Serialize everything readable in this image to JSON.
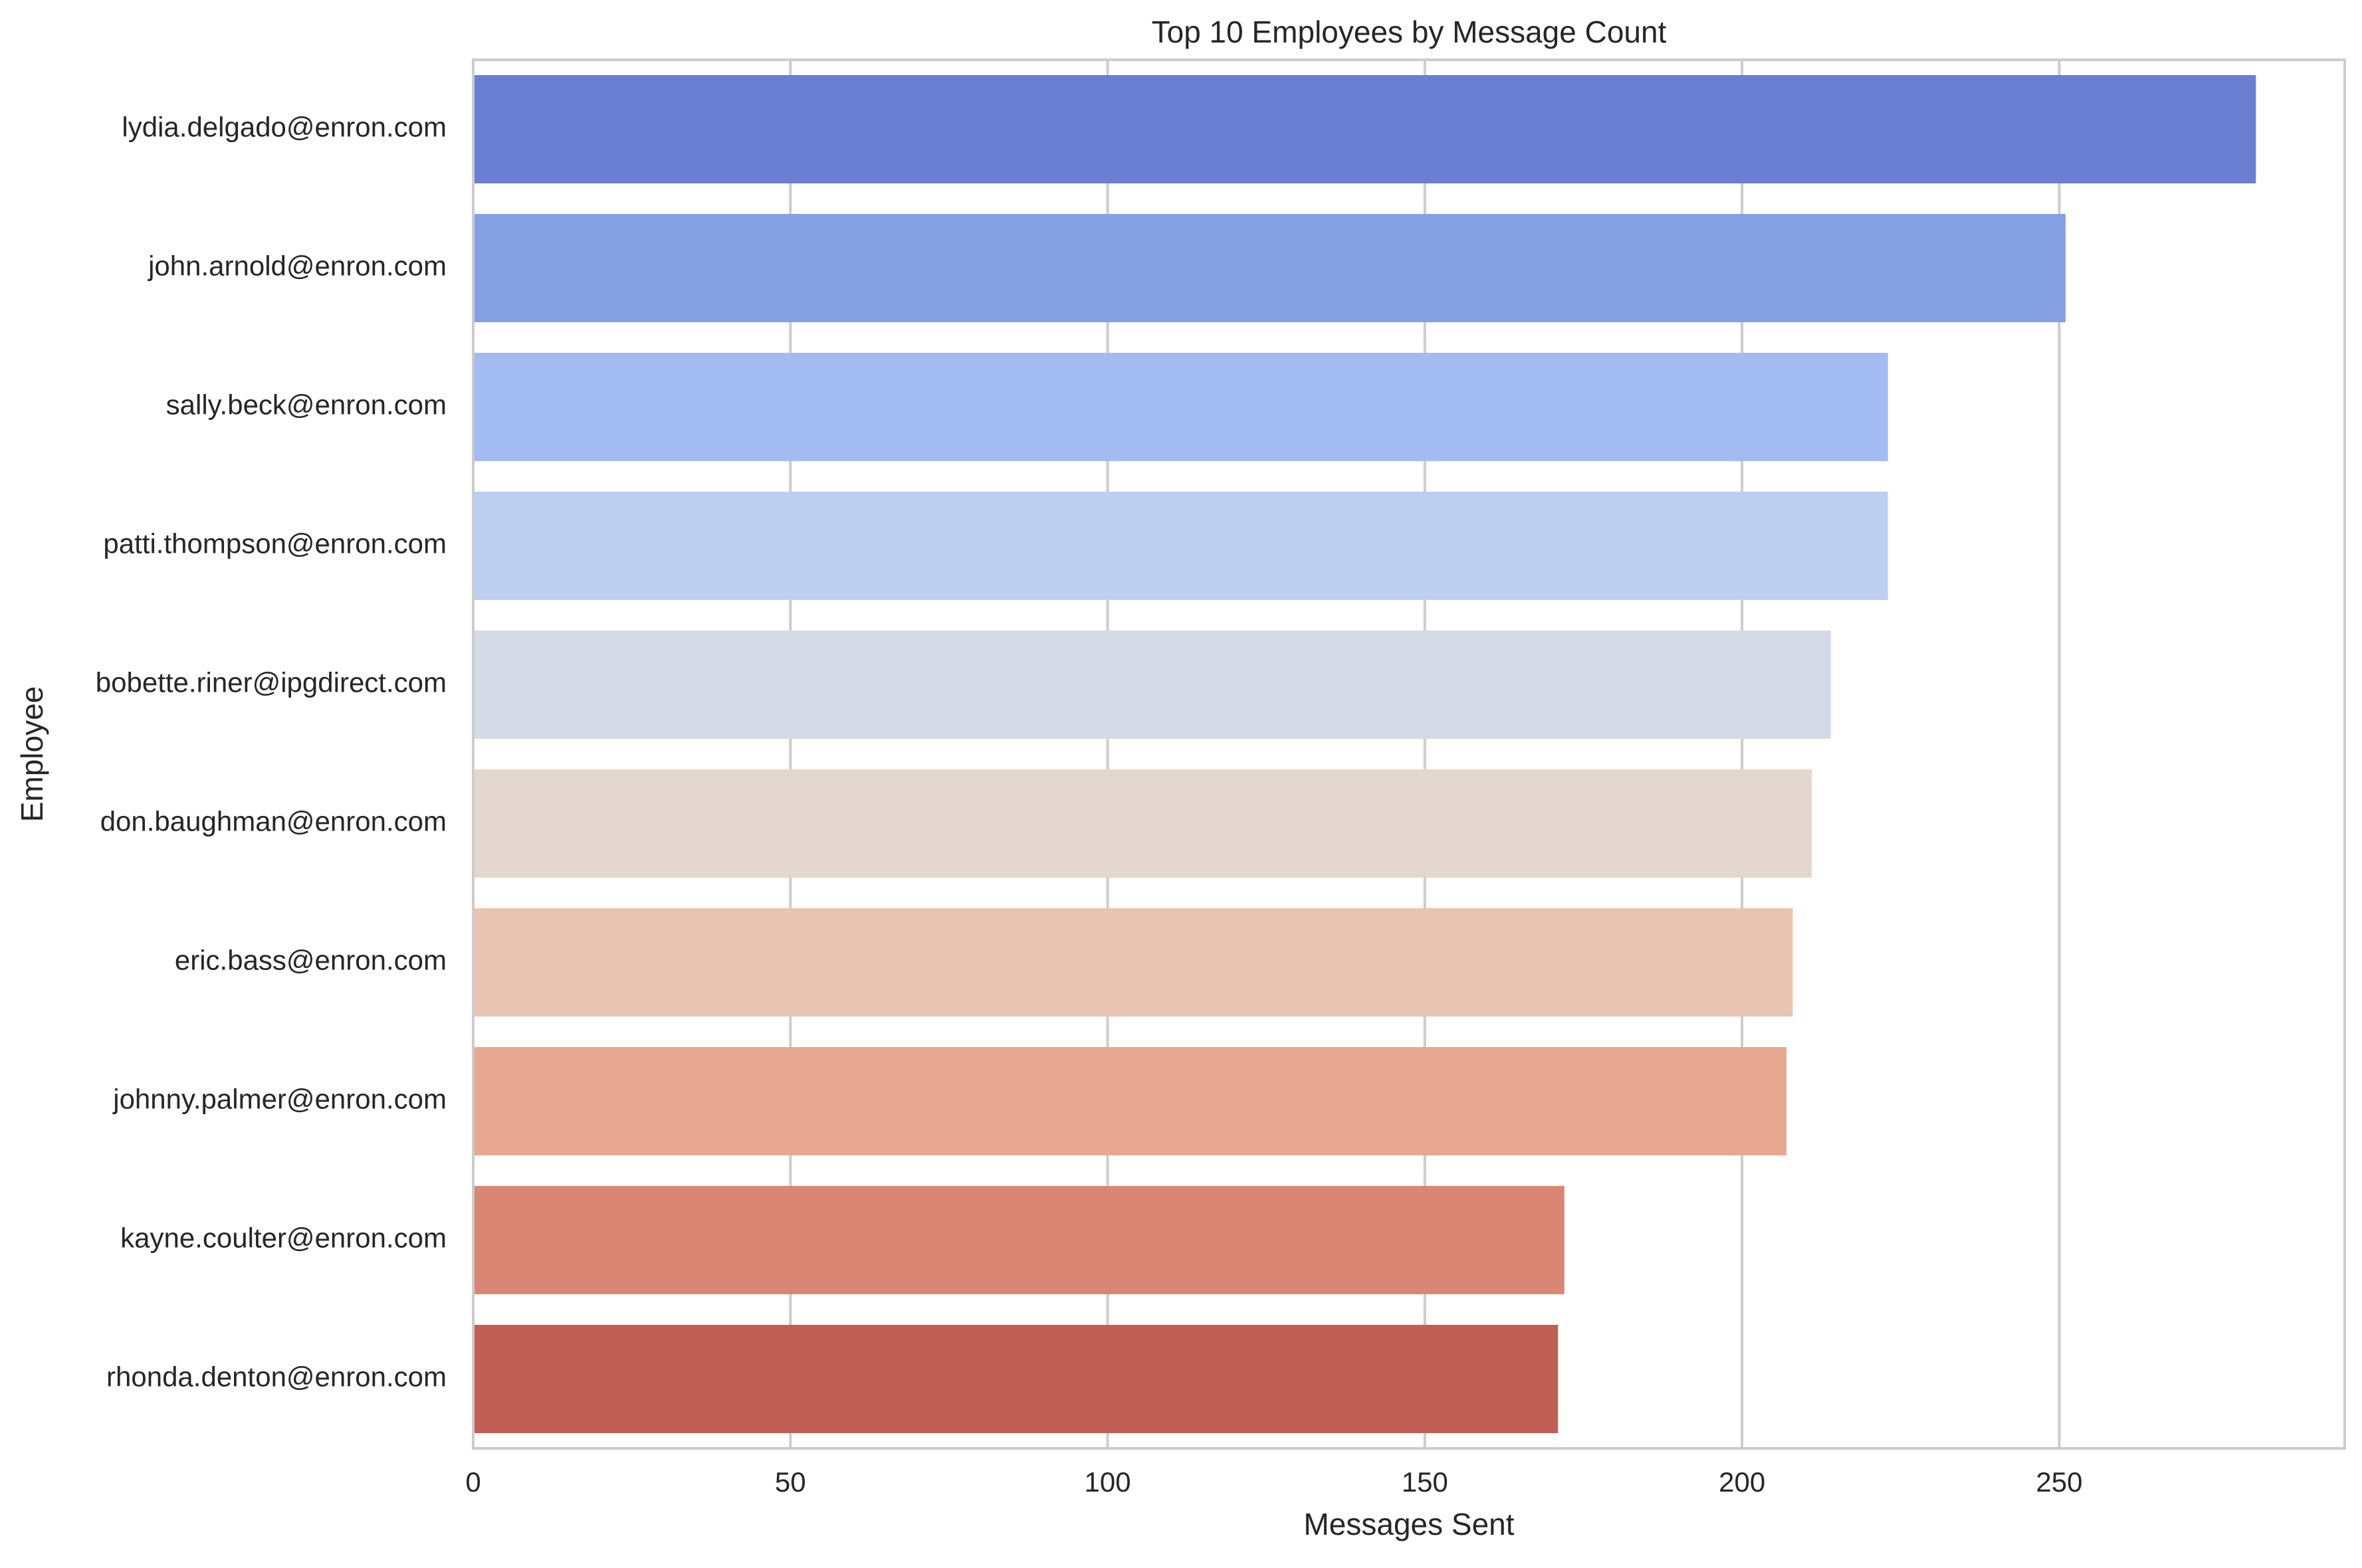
{
  "chart_data": {
    "type": "bar",
    "orientation": "horizontal",
    "title": "Top 10 Employees by Message Count",
    "xlabel": "Messages Sent",
    "ylabel": "Employee",
    "xlim": [
      0,
      295
    ],
    "xticks": [
      0,
      50,
      100,
      150,
      200,
      250
    ],
    "grid": true,
    "categories": [
      "lydia.delgado@enron.com",
      "john.arnold@enron.com",
      "sally.beck@enron.com",
      "patti.thompson@enron.com",
      "bobette.riner@ipgdirect.com",
      "don.baughman@enron.com",
      "eric.bass@enron.com",
      "johnny.palmer@enron.com",
      "kayne.coulter@enron.com",
      "rhonda.denton@enron.com"
    ],
    "values": [
      281,
      251,
      223,
      223,
      214,
      211,
      208,
      207,
      172,
      171
    ],
    "colors": [
      "#6a7fd1",
      "#86a0e4",
      "#a2bbf2",
      "#bccff1",
      "#d4dbe6",
      "#e4d7cf",
      "#eac4b2",
      "#e6a891",
      "#d98774",
      "#c15f55"
    ]
  }
}
